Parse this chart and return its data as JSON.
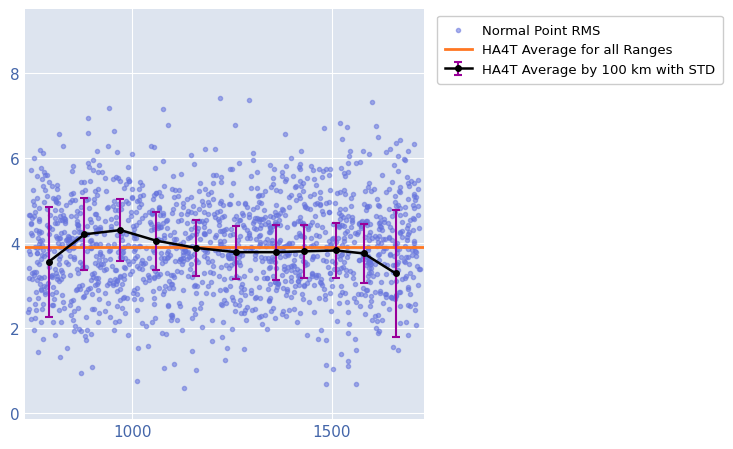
{
  "title": "",
  "scatter_color": "#6674dd",
  "scatter_alpha": 0.55,
  "scatter_size": 9,
  "line_color": "black",
  "errorbar_color": "#990099",
  "hline_color": "#ff7722",
  "hline_value": 3.9,
  "background_color": "#dde4ef",
  "fig_background": "#ffffff",
  "xlim": [
    730,
    1730
  ],
  "ylim": [
    -0.15,
    9.5
  ],
  "yticks": [
    0,
    2,
    4,
    6,
    8
  ],
  "xticks": [
    1000,
    1500
  ],
  "legend_labels": [
    "Normal Point RMS",
    "HA4T Average by 100 km with STD",
    "HA4T Average for all Ranges"
  ],
  "avg_x": [
    790,
    880,
    970,
    1060,
    1160,
    1260,
    1360,
    1430,
    1510,
    1580,
    1660
  ],
  "avg_y": [
    3.55,
    4.2,
    4.3,
    4.05,
    3.88,
    3.78,
    3.78,
    3.8,
    3.82,
    3.75,
    3.28
  ],
  "avg_std": [
    1.3,
    0.85,
    0.72,
    0.68,
    0.65,
    0.62,
    0.65,
    0.62,
    0.65,
    0.7,
    1.5
  ],
  "seed": 42,
  "n_points": 1500,
  "x_min": 735,
  "x_max": 1720,
  "y_center": 3.9,
  "y_spread": 1.1
}
